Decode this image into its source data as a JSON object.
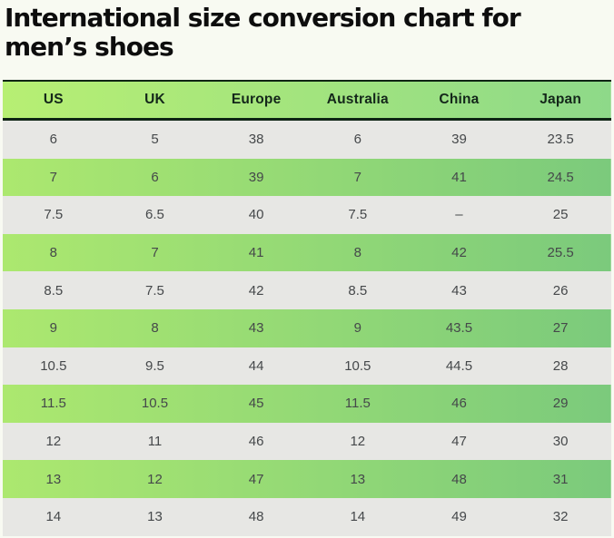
{
  "title": "International size conversion chart for men’s shoes",
  "title_lines": [
    "International size conversion chart for",
    "men’s shoes"
  ],
  "chart_data": {
    "type": "table",
    "title": "International size conversion chart for men’s shoes",
    "columns": [
      "US",
      "UK",
      "Europe",
      "Australia",
      "China",
      "Japan"
    ],
    "rows": [
      [
        "6",
        "5",
        "38",
        "6",
        "39",
        "23.5"
      ],
      [
        "7",
        "6",
        "39",
        "7",
        "41",
        "24.5"
      ],
      [
        "7.5",
        "6.5",
        "40",
        "7.5",
        "–",
        "25"
      ],
      [
        "8",
        "7",
        "41",
        "8",
        "42",
        "25.5"
      ],
      [
        "8.5",
        "7.5",
        "42",
        "8.5",
        "43",
        "26"
      ],
      [
        "9",
        "8",
        "43",
        "9",
        "43.5",
        "27"
      ],
      [
        "10.5",
        "9.5",
        "44",
        "10.5",
        "44.5",
        "28"
      ],
      [
        "11.5",
        "10.5",
        "45",
        "11.5",
        "46",
        "29"
      ],
      [
        "12",
        "11",
        "46",
        "12",
        "47",
        "30"
      ],
      [
        "13",
        "12",
        "47",
        "13",
        "48",
        "31"
      ],
      [
        "14",
        "13",
        "48",
        "14",
        "49",
        "32"
      ]
    ],
    "layout_hints": {
      "row_striping": "gray/green alternating, first data row gray",
      "grid": "off",
      "alignment": "center"
    }
  },
  "colors": {
    "page_bg": "#f8faf2",
    "title_text": "#0d0d0d",
    "header_gradient_start": "#b7ef73",
    "header_gradient_end": "#8ed989",
    "row_green_gradient_start": "#ace86f",
    "row_green_gradient_end": "#7bca7c",
    "row_gray": "#e7e7e4",
    "border_dark": "#0e2414",
    "header_text": "#14271a",
    "cell_text": "#45484a"
  }
}
